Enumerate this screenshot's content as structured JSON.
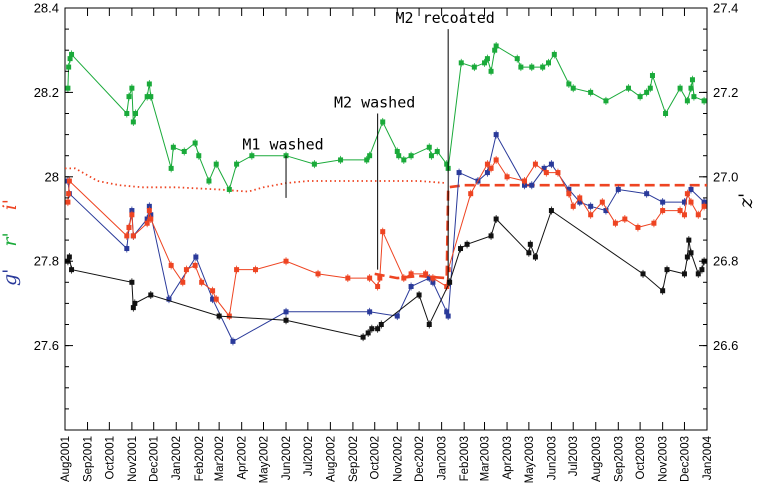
{
  "chart_data": {
    "type": "scatter",
    "title": "",
    "xlabel": "",
    "ylabel_left": [
      "g'",
      "r'",
      "i'"
    ],
    "ylabel_right": "z'",
    "ylabel_left_colors": [
      "#2a3a9a",
      "#1aaa3a",
      "#ee4422"
    ],
    "ylim_left": [
      27.4,
      28.4
    ],
    "ylim_right": [
      26.4,
      27.4
    ],
    "xlim": [
      "2001-08-01",
      "2004-01-01"
    ],
    "yticks_left": [
      "27.6",
      "27.8",
      "28",
      "28.2",
      "28.4"
    ],
    "yticks_right": [
      "26.6",
      "26.8",
      "27.0",
      "27.2",
      "27.4"
    ],
    "xticks": [
      "Aug2001",
      "Sep2001",
      "Oct2001",
      "Nov2001",
      "Dec2001",
      "Jan2002",
      "Feb2002",
      "Mar2002",
      "Apr2002",
      "May2002",
      "Jun2002",
      "Jul2002",
      "Aug2002",
      "Sep2002",
      "Oct2002",
      "Nov2002",
      "Dec2002",
      "Jan2003",
      "Feb2003",
      "Mar2003",
      "Apr2003",
      "May2003",
      "Jun2003",
      "Jul2003",
      "Aug2003",
      "Sep2003",
      "Oct2003",
      "Nov2003",
      "Dec2003",
      "Jan2004"
    ],
    "annotations": [
      {
        "text": "M1 washed",
        "date": "2002-06-01",
        "line_y": [
          27.95,
          28.05
        ]
      },
      {
        "text": "M2 washed",
        "date": "2002-10-05",
        "line_y": [
          27.78,
          28.15
        ]
      },
      {
        "text": "M2 recoated",
        "date": "2003-01-10",
        "line_y": [
          27.75,
          28.35
        ]
      }
    ],
    "series": [
      {
        "axis": "left",
        "color": "#1aaa3a",
        "points": [
          [
            "2001-08-05",
            28.21
          ],
          [
            "2001-08-06",
            28.26
          ],
          [
            "2001-08-08",
            28.28
          ],
          [
            "2001-08-10",
            28.29
          ],
          [
            "2001-10-25",
            28.15
          ],
          [
            "2001-10-28",
            28.19
          ],
          [
            "2001-11-01",
            28.21
          ],
          [
            "2001-11-03",
            28.13
          ],
          [
            "2001-11-06",
            28.15
          ],
          [
            "2001-11-22",
            28.19
          ],
          [
            "2001-11-25",
            28.22
          ],
          [
            "2001-11-27",
            28.19
          ],
          [
            "2001-12-25",
            28.02
          ],
          [
            "2001-12-28",
            28.07
          ],
          [
            "2002-01-12",
            28.06
          ],
          [
            "2002-01-27",
            28.08
          ],
          [
            "2002-02-01",
            28.05
          ],
          [
            "2002-02-15",
            27.99
          ],
          [
            "2002-02-25",
            28.03
          ],
          [
            "2002-03-15",
            27.97
          ],
          [
            "2002-03-25",
            28.03
          ],
          [
            "2002-04-15",
            28.05
          ],
          [
            "2002-06-01",
            28.05
          ],
          [
            "2002-07-10",
            28.03
          ],
          [
            "2002-08-15",
            28.04
          ],
          [
            "2002-09-20",
            28.04
          ],
          [
            "2002-09-24",
            28.05
          ],
          [
            "2002-10-12",
            28.13
          ],
          [
            "2002-11-01",
            28.06
          ],
          [
            "2002-11-03",
            28.05
          ],
          [
            "2002-11-10",
            28.04
          ],
          [
            "2002-11-20",
            28.05
          ],
          [
            "2002-12-15",
            28.07
          ],
          [
            "2002-12-18",
            28.05
          ],
          [
            "2002-12-26",
            28.06
          ],
          [
            "2003-01-08",
            28.03
          ],
          [
            "2003-01-10",
            28.02
          ],
          [
            "2003-01-28",
            28.27
          ],
          [
            "2003-02-15",
            28.26
          ],
          [
            "2003-03-01",
            28.27
          ],
          [
            "2003-03-05",
            28.28
          ],
          [
            "2003-03-10",
            28.25
          ],
          [
            "2003-03-15",
            28.3
          ],
          [
            "2003-03-17",
            28.31
          ],
          [
            "2003-04-15",
            28.28
          ],
          [
            "2003-04-20",
            28.26
          ],
          [
            "2003-05-05",
            28.26
          ],
          [
            "2003-05-20",
            28.26
          ],
          [
            "2003-05-28",
            28.27
          ],
          [
            "2003-06-05",
            28.29
          ],
          [
            "2003-06-25",
            28.22
          ],
          [
            "2003-07-01",
            28.21
          ],
          [
            "2003-07-25",
            28.2
          ],
          [
            "2003-08-15",
            28.18
          ],
          [
            "2003-09-15",
            28.21
          ],
          [
            "2003-10-01",
            28.19
          ],
          [
            "2003-10-10",
            28.2
          ],
          [
            "2003-10-15",
            28.21
          ],
          [
            "2003-10-18",
            28.24
          ],
          [
            "2003-11-05",
            28.15
          ],
          [
            "2003-11-25",
            28.21
          ],
          [
            "2003-12-05",
            28.18
          ],
          [
            "2003-12-10",
            28.21
          ],
          [
            "2003-12-12",
            28.23
          ],
          [
            "2003-12-14",
            28.19
          ],
          [
            "2003-12-28",
            28.18
          ]
        ]
      },
      {
        "axis": "left",
        "color": "#2a3a9a",
        "points": [
          [
            "2001-08-05",
            27.99
          ],
          [
            "2001-08-07",
            27.96
          ],
          [
            "2001-10-25",
            27.83
          ],
          [
            "2001-10-28",
            27.88
          ],
          [
            "2001-11-01",
            27.92
          ],
          [
            "2001-11-03",
            27.86
          ],
          [
            "2001-11-22",
            27.9
          ],
          [
            "2001-11-25",
            27.93
          ],
          [
            "2001-11-27",
            27.91
          ],
          [
            "2001-12-22",
            27.71
          ],
          [
            "2002-01-28",
            27.81
          ],
          [
            "2002-02-20",
            27.71
          ],
          [
            "2002-03-20",
            27.61
          ],
          [
            "2002-06-01",
            27.68
          ],
          [
            "2002-09-24",
            27.68
          ],
          [
            "2002-11-01",
            27.67
          ],
          [
            "2002-11-20",
            27.74
          ],
          [
            "2002-12-15",
            27.76
          ],
          [
            "2002-12-20",
            27.75
          ],
          [
            "2003-01-08",
            27.68
          ],
          [
            "2003-01-10",
            27.67
          ],
          [
            "2003-01-25",
            28.01
          ],
          [
            "2003-02-20",
            27.99
          ],
          [
            "2003-03-05",
            28.01
          ],
          [
            "2003-03-17",
            28.1
          ],
          [
            "2003-04-25",
            27.98
          ],
          [
            "2003-05-05",
            27.98
          ],
          [
            "2003-05-22",
            28.02
          ],
          [
            "2003-06-01",
            28.03
          ],
          [
            "2003-06-25",
            27.97
          ],
          [
            "2003-07-10",
            27.94
          ],
          [
            "2003-07-25",
            27.93
          ],
          [
            "2003-08-15",
            27.92
          ],
          [
            "2003-09-01",
            27.97
          ],
          [
            "2003-10-10",
            27.96
          ],
          [
            "2003-11-01",
            27.94
          ],
          [
            "2003-12-01",
            27.94
          ],
          [
            "2003-12-10",
            27.97
          ],
          [
            "2003-12-28",
            27.94
          ]
        ]
      },
      {
        "axis": "left",
        "color": "#ee4422",
        "points": [
          [
            "2001-08-05",
            27.94
          ],
          [
            "2001-08-06",
            27.96
          ],
          [
            "2001-08-07",
            27.99
          ],
          [
            "2001-10-25",
            27.86
          ],
          [
            "2001-10-28",
            27.88
          ],
          [
            "2001-11-01",
            27.91
          ],
          [
            "2001-11-03",
            27.86
          ],
          [
            "2001-11-22",
            27.89
          ],
          [
            "2001-11-25",
            27.92
          ],
          [
            "2001-11-27",
            27.9
          ],
          [
            "2001-12-25",
            27.79
          ],
          [
            "2002-01-10",
            27.75
          ],
          [
            "2002-01-15",
            27.78
          ],
          [
            "2002-01-27",
            27.79
          ],
          [
            "2002-02-05",
            27.75
          ],
          [
            "2002-02-20",
            27.73
          ],
          [
            "2002-02-25",
            27.71
          ],
          [
            "2002-03-15",
            27.67
          ],
          [
            "2002-03-25",
            27.78
          ],
          [
            "2002-04-20",
            27.78
          ],
          [
            "2002-06-01",
            27.8
          ],
          [
            "2002-07-15",
            27.77
          ],
          [
            "2002-08-25",
            27.76
          ],
          [
            "2002-09-24",
            27.76
          ],
          [
            "2002-10-05",
            27.74
          ],
          [
            "2002-10-08",
            27.76
          ],
          [
            "2002-10-12",
            27.87
          ],
          [
            "2002-11-10",
            27.76
          ],
          [
            "2002-11-20",
            27.77
          ],
          [
            "2002-12-10",
            27.77
          ],
          [
            "2002-12-20",
            27.76
          ],
          [
            "2003-01-08",
            27.74
          ],
          [
            "2003-01-10",
            27.78
          ],
          [
            "2003-02-10",
            27.96
          ],
          [
            "2003-03-05",
            28.03
          ],
          [
            "2003-03-10",
            28.02
          ],
          [
            "2003-03-17",
            28.04
          ],
          [
            "2003-04-01",
            28.0
          ],
          [
            "2003-04-25",
            27.99
          ],
          [
            "2003-05-10",
            28.03
          ],
          [
            "2003-05-25",
            28.01
          ],
          [
            "2003-06-10",
            28.01
          ],
          [
            "2003-06-25",
            27.96
          ],
          [
            "2003-07-01",
            27.93
          ],
          [
            "2003-07-10",
            27.95
          ],
          [
            "2003-07-25",
            27.91
          ],
          [
            "2003-08-10",
            27.94
          ],
          [
            "2003-08-28",
            27.89
          ],
          [
            "2003-09-10",
            27.9
          ],
          [
            "2003-09-28",
            27.88
          ],
          [
            "2003-10-20",
            27.89
          ],
          [
            "2003-11-01",
            27.92
          ],
          [
            "2003-11-25",
            27.92
          ],
          [
            "2003-12-01",
            27.91
          ],
          [
            "2003-12-05",
            27.96
          ],
          [
            "2003-12-10",
            27.94
          ],
          [
            "2003-12-20",
            27.91
          ],
          [
            "2003-12-28",
            27.93
          ]
        ]
      },
      {
        "axis": "right",
        "color": "#111111",
        "points": [
          [
            "2001-08-05",
            26.8
          ],
          [
            "2001-08-07",
            26.81
          ],
          [
            "2001-08-10",
            26.78
          ],
          [
            "2001-11-01",
            26.75
          ],
          [
            "2001-11-03",
            26.69
          ],
          [
            "2001-11-05",
            26.7
          ],
          [
            "2001-11-27",
            26.72
          ],
          [
            "2002-03-01",
            26.67
          ],
          [
            "2002-06-01",
            26.66
          ],
          [
            "2002-09-15",
            26.62
          ],
          [
            "2002-09-22",
            26.63
          ],
          [
            "2002-09-27",
            26.64
          ],
          [
            "2002-10-05",
            26.64
          ],
          [
            "2002-10-10",
            26.65
          ],
          [
            "2002-12-01",
            26.72
          ],
          [
            "2002-12-15",
            26.65
          ],
          [
            "2003-01-12",
            26.75
          ],
          [
            "2003-01-27",
            26.83
          ],
          [
            "2003-02-05",
            26.84
          ],
          [
            "2003-03-10",
            26.86
          ],
          [
            "2003-03-17",
            26.9
          ],
          [
            "2003-05-01",
            26.82
          ],
          [
            "2003-05-03",
            26.84
          ],
          [
            "2003-05-10",
            26.81
          ],
          [
            "2003-06-01",
            26.92
          ],
          [
            "2003-10-05",
            26.77
          ],
          [
            "2003-11-01",
            26.73
          ],
          [
            "2003-11-07",
            26.78
          ],
          [
            "2003-12-01",
            26.77
          ],
          [
            "2003-12-05",
            26.81
          ],
          [
            "2003-12-07",
            26.85
          ],
          [
            "2003-12-10",
            26.82
          ],
          [
            "2003-12-20",
            26.77
          ],
          [
            "2003-12-25",
            26.78
          ],
          [
            "2003-12-28",
            26.8
          ]
        ]
      }
    ],
    "reference_curves": [
      {
        "axis": "left",
        "color": "#ee4422",
        "style": "dotted",
        "points": [
          [
            "2001-08-01",
            28.02
          ],
          [
            "2001-08-15",
            28.02
          ],
          [
            "2001-09-15",
            27.99
          ],
          [
            "2001-10-15",
            27.98
          ],
          [
            "2001-11-15",
            27.975
          ],
          [
            "2002-01-01",
            27.975
          ],
          [
            "2002-03-01",
            27.97
          ],
          [
            "2002-04-10",
            27.965
          ],
          [
            "2002-05-01",
            27.975
          ],
          [
            "2002-06-01",
            27.985
          ],
          [
            "2002-07-01",
            27.99
          ],
          [
            "2002-12-01",
            27.99
          ],
          [
            "2003-01-08",
            27.985
          ]
        ]
      },
      {
        "axis": "left",
        "color": "#ee4422",
        "style": "dashed",
        "points": [
          [
            "2002-10-01",
            27.77
          ],
          [
            "2002-11-01",
            27.76
          ],
          [
            "2002-12-01",
            27.765
          ],
          [
            "2003-01-08",
            27.76
          ],
          [
            "2003-01-10",
            27.975
          ],
          [
            "2003-02-01",
            27.98
          ],
          [
            "2003-04-01",
            27.98
          ],
          [
            "2003-06-01",
            27.98
          ],
          [
            "2003-09-01",
            27.98
          ],
          [
            "2004-01-01",
            27.98
          ]
        ]
      }
    ]
  }
}
